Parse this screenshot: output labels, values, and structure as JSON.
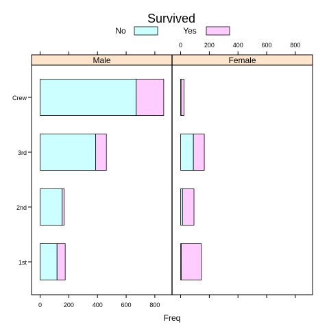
{
  "chart_data": {
    "type": "bar",
    "orientation": "horizontal",
    "stacked": true,
    "title": "Survived",
    "xlabel": "Freq",
    "ylabel": "",
    "xlim": [
      -60,
      920
    ],
    "x_ticks": [
      0,
      200,
      400,
      600,
      800
    ],
    "categories": [
      "1st",
      "2nd",
      "3rd",
      "Crew"
    ],
    "legend": {
      "position": "top",
      "entries": [
        {
          "name": "No",
          "color": "#CCFFFF"
        },
        {
          "name": "Yes",
          "color": "#FFCCFF"
        }
      ]
    },
    "panels": [
      {
        "name": "Male",
        "series": [
          {
            "name": "No",
            "values": [
              118,
              154,
              387,
              670
            ]
          },
          {
            "name": "Yes",
            "values": [
              57,
              14,
              75,
              192
            ]
          }
        ]
      },
      {
        "name": "Female",
        "series": [
          {
            "name": "No",
            "values": [
              4,
              13,
              89,
              3
            ]
          },
          {
            "name": "Yes",
            "values": [
              140,
              80,
              76,
              20
            ]
          }
        ]
      }
    ],
    "strip_color": "#FFE5CC",
    "grid": false
  }
}
